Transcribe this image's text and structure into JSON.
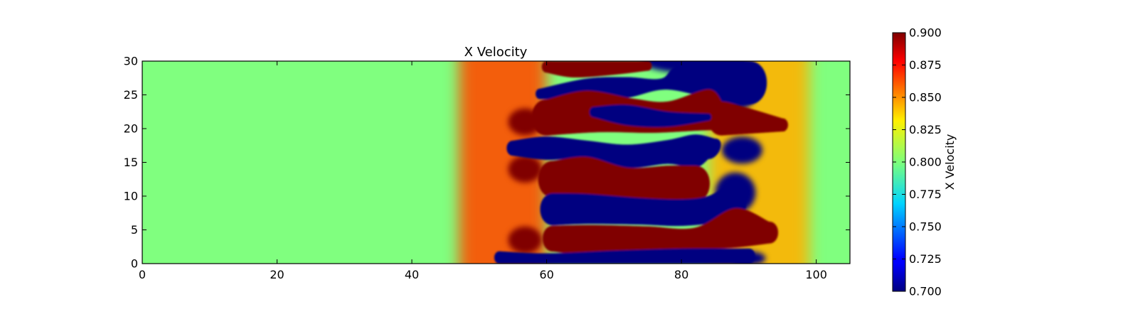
{
  "chart_data": {
    "type": "heatmap",
    "title": "X Velocity",
    "xlim": [
      0,
      105
    ],
    "ylim": [
      0,
      30
    ],
    "x_ticks": [
      0,
      20,
      40,
      60,
      80,
      100
    ],
    "y_ticks": [
      0,
      5,
      10,
      15,
      20,
      25,
      30
    ],
    "colormap": "jet",
    "background_value": 0.8,
    "colorbar": {
      "label": "X Velocity",
      "range": [
        0.7,
        0.9
      ],
      "ticks": [
        "0.700",
        "0.725",
        "0.750",
        "0.775",
        "0.800",
        "0.825",
        "0.850",
        "0.875",
        "0.900"
      ]
    },
    "glow_bands": [
      {
        "x_from": 47,
        "x_to": 60,
        "peak_x": 57,
        "peak_value": 0.86
      },
      {
        "x_from": 84,
        "x_to": 99,
        "peak_x": 92,
        "peak_value": 0.84
      }
    ],
    "fingers": [
      {
        "value": 0.9,
        "top": [
          [
            60,
            28.3
          ],
          [
            64,
            27.6
          ],
          [
            70,
            28.0
          ],
          [
            75,
            28.6
          ]
        ],
        "bottom": [
          [
            60,
            30
          ],
          [
            75,
            30
          ]
        ]
      },
      {
        "value": 0.7,
        "top": [
          [
            59,
            25.9
          ],
          [
            66,
            27.4
          ],
          [
            72,
            27.6
          ],
          [
            77,
            27.4
          ],
          [
            80,
            29.5
          ],
          [
            90,
            30
          ]
        ],
        "bottom": [
          [
            59,
            24.4
          ],
          [
            66,
            24.3
          ],
          [
            72,
            24.6
          ],
          [
            78,
            25.8
          ],
          [
            86,
            24.0
          ],
          [
            90,
            23.6
          ]
        ]
      },
      {
        "value": 0.9,
        "top": [
          [
            60,
            24.3
          ],
          [
            66,
            25.6
          ],
          [
            73,
            24.4
          ],
          [
            78,
            24.0
          ],
          [
            84,
            25.8
          ],
          [
            86,
            24.0
          ]
        ],
        "bottom": [
          [
            60,
            19.0
          ],
          [
            68,
            19.5
          ],
          [
            76,
            19.4
          ],
          [
            85,
            19.8
          ],
          [
            95,
            19.6
          ]
        ]
      },
      {
        "value": 0.9,
        "top": [
          [
            86,
            24.0
          ],
          [
            90,
            23.0
          ],
          [
            95,
            21.5
          ]
        ],
        "bottom": [
          [
            86,
            19.0
          ],
          [
            95,
            19.6
          ]
        ]
      },
      {
        "value": 0.7,
        "top": [
          [
            67,
            23.2
          ],
          [
            72,
            23.5
          ],
          [
            78,
            22.5
          ],
          [
            84,
            22.2
          ]
        ],
        "bottom": [
          [
            67,
            21.7
          ],
          [
            72,
            20.5
          ],
          [
            78,
            20.3
          ],
          [
            84,
            21.2
          ]
        ]
      },
      {
        "value": 0.7,
        "top": [
          [
            55,
            18.2
          ],
          [
            60,
            18.8
          ],
          [
            66,
            18.2
          ],
          [
            72,
            17.6
          ],
          [
            78,
            18.3
          ],
          [
            82,
            19.1
          ],
          [
            85,
            18.5
          ]
        ],
        "bottom": [
          [
            55,
            16.0
          ],
          [
            60,
            15.4
          ],
          [
            66,
            15.6
          ],
          [
            72,
            14.2
          ],
          [
            78,
            14.8
          ],
          [
            82,
            14.2
          ],
          [
            84,
            15.5
          ]
        ]
      },
      {
        "value": 0.9,
        "top": [
          [
            61,
            15.2
          ],
          [
            66,
            15.8
          ],
          [
            72,
            14.2
          ],
          [
            78,
            14.5
          ],
          [
            82,
            14.5
          ]
        ],
        "bottom": [
          [
            61,
            9.8
          ],
          [
            66,
            10.2
          ],
          [
            72,
            9.8
          ],
          [
            78,
            9.4
          ],
          [
            82,
            9.2
          ]
        ]
      },
      {
        "value": 0.7,
        "top": [
          [
            61,
            10.4
          ],
          [
            66,
            10.3
          ],
          [
            74,
            9.7
          ],
          [
            80,
            9.5
          ],
          [
            84,
            10.0
          ],
          [
            87,
            11.8
          ]
        ],
        "bottom": [
          [
            61,
            5.7
          ],
          [
            66,
            5.9
          ],
          [
            74,
            5.8
          ],
          [
            80,
            5.6
          ],
          [
            86,
            6.2
          ],
          [
            88,
            7.0
          ]
        ]
      },
      {
        "value": 0.9,
        "top": [
          [
            61,
            5.6
          ],
          [
            67,
            5.7
          ],
          [
            75,
            5.5
          ],
          [
            82,
            5.3
          ],
          [
            88,
            8.2
          ],
          [
            93,
            6.2
          ]
        ],
        "bottom": [
          [
            61,
            1.8
          ],
          [
            67,
            1.2
          ],
          [
            75,
            1.6
          ],
          [
            82,
            2.1
          ],
          [
            88,
            2.4
          ],
          [
            93,
            3.0
          ]
        ]
      },
      {
        "value": 0.7,
        "top": [
          [
            53,
            1.8
          ],
          [
            60,
            1.5
          ],
          [
            70,
            1.9
          ],
          [
            80,
            2.2
          ],
          [
            90,
            2.2
          ]
        ],
        "bottom": [
          [
            53,
            0
          ],
          [
            90,
            0
          ]
        ]
      }
    ],
    "blobs": [
      {
        "value": 0.9,
        "x": 56.8,
        "y": 21,
        "rx": 2.5,
        "ry": 2.0
      },
      {
        "value": 0.9,
        "x": 56.8,
        "y": 14,
        "rx": 2.5,
        "ry": 2.0
      },
      {
        "value": 0.9,
        "x": 56.8,
        "y": 3.5,
        "rx": 2.5,
        "ry": 2.0
      },
      {
        "value": 0.7,
        "x": 88,
        "y": 25.2,
        "rx": 3.0,
        "ry": 2.5
      },
      {
        "value": 0.7,
        "x": 89,
        "y": 16.8,
        "rx": 3.0,
        "ry": 2.0
      },
      {
        "value": 0.7,
        "x": 88,
        "y": 10.5,
        "rx": 3.0,
        "ry": 3.0
      },
      {
        "value": 0.7,
        "x": 90,
        "y": 0.8,
        "rx": 2.5,
        "ry": 1.0
      },
      {
        "value": 0.7,
        "x": 82,
        "y": 30,
        "rx": 8.0,
        "ry": 1.8
      }
    ]
  }
}
